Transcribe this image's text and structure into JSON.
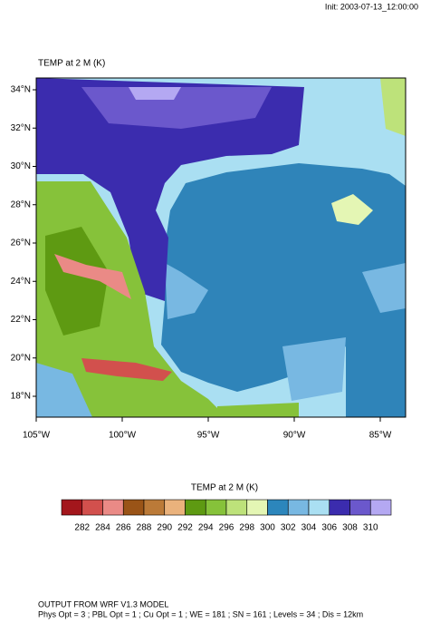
{
  "header": {
    "init": "Init: 2003-07-13_12:00:00"
  },
  "map": {
    "title": "TEMP at 2 M   (K)",
    "lat_labels": [
      "34°N",
      "32°N",
      "30°N",
      "28°N",
      "26°N",
      "24°N",
      "22°N",
      "20°N",
      "18°N"
    ],
    "lon_labels": [
      "105°W",
      "100°W",
      "95°W",
      "90°W",
      "85°W"
    ]
  },
  "colorbar": {
    "title": "TEMP at 2 M  (K)",
    "colors": [
      "#a3161c",
      "#d2504d",
      "#ea8a86",
      "#9a5417",
      "#bb7a38",
      "#eab27c",
      "#5e9a12",
      "#86c23a",
      "#bde27a",
      "#e4f6b4",
      "#2c86bc",
      "#78b8e2",
      "#aadff2",
      "#3b2cae",
      "#6b58cc",
      "#b4a8f2"
    ],
    "levels": [
      282,
      284,
      286,
      288,
      290,
      292,
      294,
      296,
      298,
      300,
      302,
      304,
      306,
      308,
      310
    ]
  },
  "footer": [
    "OUTPUT FROM WRF V1.3 MODEL",
    "Phys Opt = 3 ; PBL Opt = 1 ; Cu Opt = 1 ; WE = 181 ; SN = 161 ; Levels = 34 ; Dis = 12km"
  ]
}
